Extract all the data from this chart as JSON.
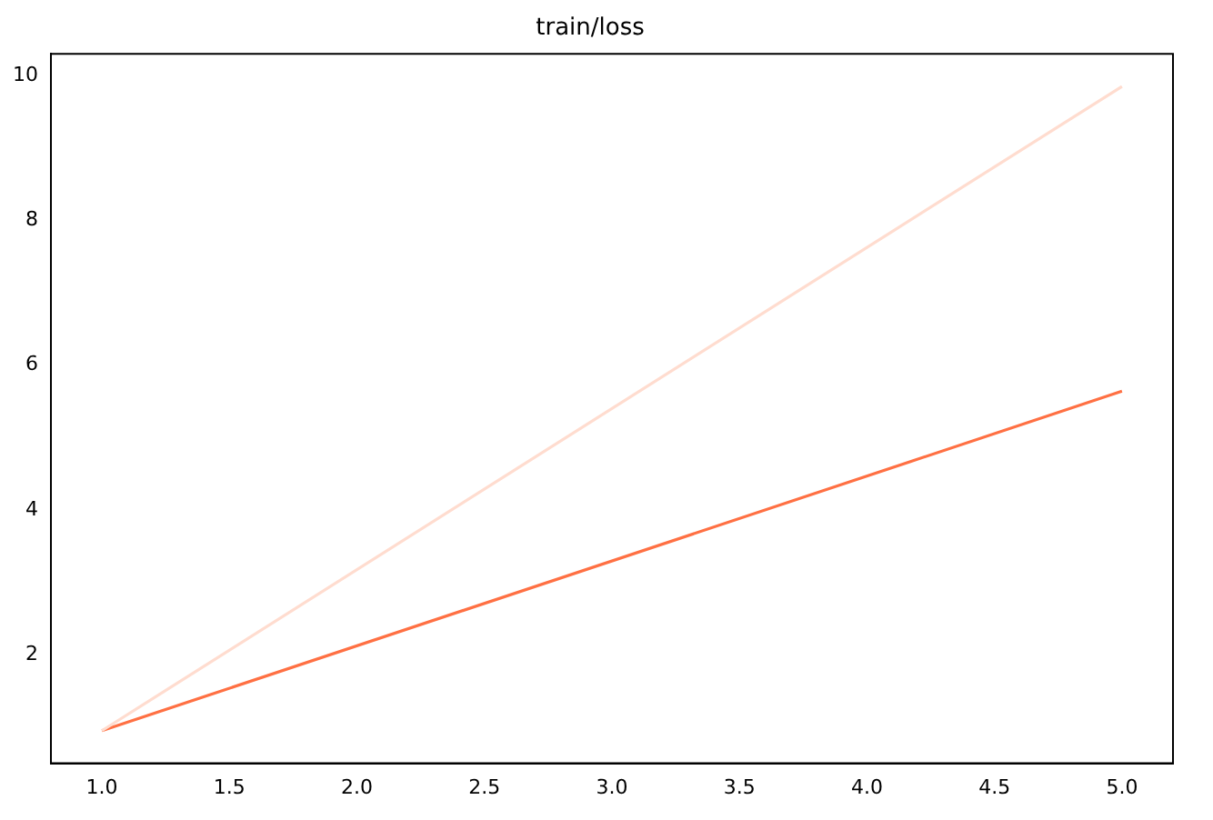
{
  "chart_data": {
    "type": "line",
    "title": "train/loss",
    "x": [
      1,
      5
    ],
    "series": [
      {
        "color": "#ffdccf",
        "values": [
          0.95,
          9.85
        ]
      },
      {
        "color": "#ff7043",
        "values": [
          0.95,
          5.64
        ]
      }
    ],
    "xlim": [
      0.8,
      5.2
    ],
    "xticks": [
      {
        "value": 1,
        "label": "1.0"
      },
      {
        "value": 1.5,
        "label": "1.5"
      },
      {
        "value": 2,
        "label": "2.0"
      },
      {
        "value": 2.5,
        "label": "2.5"
      },
      {
        "value": 3,
        "label": "3.0"
      },
      {
        "value": 3.5,
        "label": "3.5"
      },
      {
        "value": 4,
        "label": "4.0"
      },
      {
        "value": 4.5,
        "label": "4.5"
      },
      {
        "value": 5,
        "label": "5.0"
      }
    ],
    "ylim": [
      0.5,
      10.3
    ],
    "yticks": [
      2,
      4,
      6,
      8,
      10
    ],
    "grid": false,
    "legend": false,
    "marker": "none",
    "line_style": "solid"
  }
}
